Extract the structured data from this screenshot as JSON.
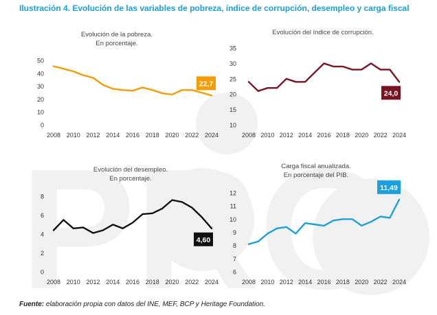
{
  "figure_title": "Ilustración 4. Evolución de las variables de pobreza, índice de corrupción, desempleo y carga fiscal",
  "source": {
    "label": "Fuente:",
    "text": "elaboración propia con datos del INE, MEF, BCP y Heritage Foundation."
  },
  "watermark_text": "PRO",
  "chart_data": [
    {
      "type": "line",
      "title": "Evolución de la pobreza.",
      "subtitle": "En porcentaje.",
      "color": "#f59c00",
      "x": [
        2008,
        2009,
        2010,
        2011,
        2012,
        2013,
        2014,
        2015,
        2016,
        2017,
        2018,
        2019,
        2020,
        2021,
        2022,
        2023,
        2024
      ],
      "values": [
        45.5,
        43.5,
        41.5,
        38.5,
        36.5,
        31,
        28,
        27,
        26.5,
        29,
        27,
        24.5,
        23.5,
        27,
        27,
        25,
        22.7
      ],
      "ylim": [
        0,
        50
      ],
      "yticks": [
        0,
        10,
        20,
        30,
        40,
        50
      ],
      "xticks": [
        2008,
        2010,
        2012,
        2014,
        2016,
        2018,
        2020,
        2022,
        2024
      ],
      "last_label": "22,7",
      "label_text_color": "#ffffff"
    },
    {
      "type": "line",
      "title": "Evolución del índice de corrupción.",
      "subtitle": "",
      "color": "#7a1220",
      "x": [
        2008,
        2009,
        2010,
        2011,
        2012,
        2013,
        2014,
        2015,
        2016,
        2017,
        2018,
        2019,
        2020,
        2021,
        2022,
        2023,
        2024
      ],
      "values": [
        24,
        21,
        22,
        22,
        25,
        24,
        24,
        27,
        30,
        29,
        29,
        28,
        28,
        30,
        28,
        28,
        24
      ],
      "ylim": [
        10,
        35
      ],
      "yticks": [
        10,
        15,
        20,
        25,
        30,
        35
      ],
      "xticks": [
        2008,
        2010,
        2012,
        2014,
        2016,
        2018,
        2020,
        2022,
        2024
      ],
      "last_label": "24,0",
      "label_text_color": "#ffffff"
    },
    {
      "type": "line",
      "title": "Evolución del desempleo.",
      "subtitle": "En porcentaje.",
      "color": "#111111",
      "x": [
        2008,
        2009,
        2010,
        2011,
        2012,
        2013,
        2014,
        2015,
        2016,
        2017,
        2018,
        2019,
        2020,
        2021,
        2022,
        2023,
        2024
      ],
      "values": [
        4.4,
        5.5,
        4.6,
        4.7,
        4.1,
        4.4,
        5.0,
        4.6,
        5.2,
        6.1,
        6.2,
        6.7,
        7.6,
        7.4,
        6.8,
        5.8,
        4.6
      ],
      "ylim": [
        0,
        8
      ],
      "yticks": [
        0,
        2,
        4,
        6,
        8
      ],
      "xticks": [
        2008,
        2010,
        2012,
        2014,
        2016,
        2018,
        2020,
        2022,
        2024
      ],
      "last_label": "4,60",
      "label_text_color": "#ffffff"
    },
    {
      "type": "line",
      "title": "Carga fiscal anualizada.",
      "subtitle": "En porcentaje del PIB.",
      "color": "#1aa0dc",
      "x": [
        2008,
        2009,
        2010,
        2011,
        2012,
        2013,
        2014,
        2015,
        2016,
        2017,
        2018,
        2019,
        2020,
        2021,
        2022,
        2023,
        2024
      ],
      "values": [
        8.1,
        8.3,
        8.9,
        9.3,
        9.4,
        8.9,
        9.7,
        9.6,
        9.5,
        9.9,
        10.0,
        10.0,
        9.5,
        9.8,
        10.2,
        10.1,
        11.49
      ],
      "ylim": [
        6,
        12
      ],
      "yticks": [
        6,
        7,
        8,
        9,
        10,
        11,
        12
      ],
      "xticks": [
        2008,
        2010,
        2012,
        2014,
        2016,
        2018,
        2020,
        2022,
        2024
      ],
      "last_label": "11,49",
      "label_text_color": "#ffffff"
    }
  ]
}
